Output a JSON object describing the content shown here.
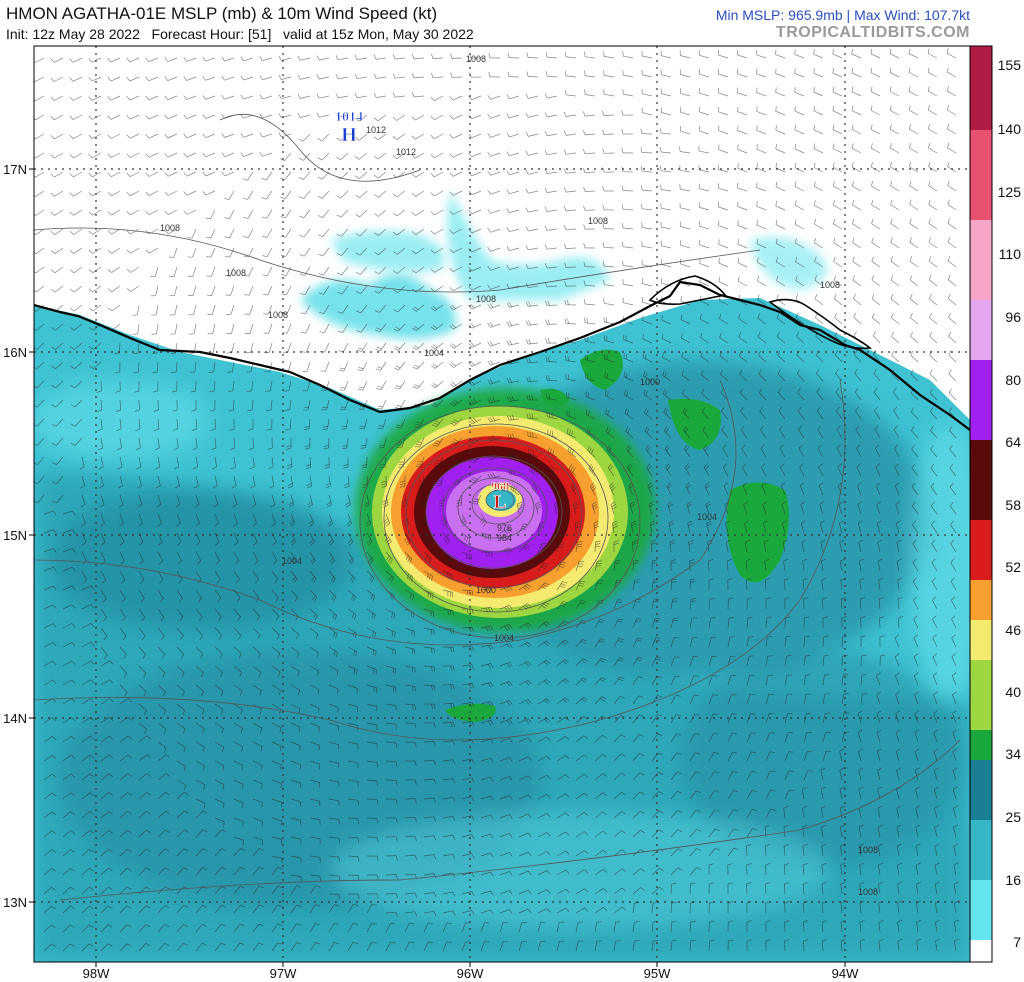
{
  "header": {
    "title": "HMON AGATHA-01E MSLP (mb) & 10m Wind Speed (kt)",
    "subtitle": "Init: 12z May 28 2022   Forecast Hour: [51]   valid at 15z Mon, May 30 2022",
    "stats": "Min MSLP: 965.9mb  |  Max Wind: 107.7kt",
    "brand": "TROPICALTIDBITS.COM"
  },
  "map": {
    "lon_labels": [
      "98W",
      "97W",
      "96W",
      "95W",
      "94W"
    ],
    "lat_labels": [
      "17N",
      "16N",
      "15N",
      "14N",
      "13N"
    ],
    "high_center": {
      "pressure": "1014",
      "symbol": "H"
    },
    "low_center": {
      "pressure": "968",
      "symbol": "L"
    },
    "isobar_labels": [
      "1008",
      "1012",
      "1012",
      "1008",
      "1008",
      "1008",
      "1008",
      "1004",
      "1004",
      "1004",
      "1000",
      "1000",
      "976",
      "984",
      "1004",
      "1008",
      "1008",
      "1008"
    ]
  },
  "colorbar": {
    "labels": [
      "155",
      "140",
      "125",
      "110",
      "96",
      "80",
      "64",
      "58",
      "52",
      "46",
      "40",
      "34",
      "25",
      "16",
      "7"
    ],
    "colors": {
      "extreme": "#b01c43",
      "cat4": "#e85070",
      "cat3": "#f7a6c9",
      "cat2": "#e5a8f0",
      "cat1": "#a020f0",
      "storm_high": "#5a0a0a",
      "storm_mid": "#d81c1c",
      "gale_high": "#f7a030",
      "gale_mid": "#f5ea70",
      "gale_low": "#9dd640",
      "tropical": "#1aa83c",
      "depression": "#1a7f93",
      "moderate": "#37b6c8",
      "light": "#64e5ee",
      "calm": "#ffffff"
    }
  }
}
